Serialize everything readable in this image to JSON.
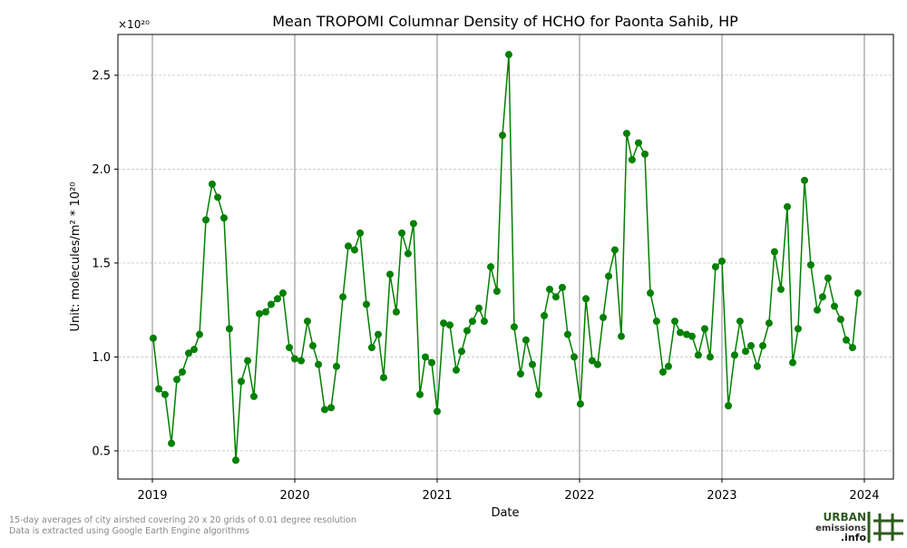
{
  "chart_data": {
    "type": "line",
    "title": "Mean TROPOMI Columnar Density of HCHO for Paonta Sahib, HP",
    "x_label": "Date",
    "y_label": "Unit: molecules/m² * 10²⁰",
    "y_offset_label": "×10²⁰",
    "footnotes": [
      "15-day averages of city airshed covering 20 x 20 grids of 0.01 degree resolution",
      "Data is extracted using Google Earth Engine algorithms"
    ],
    "logo": [
      "URBAN",
      "emissions",
      ".info"
    ],
    "xlim": [
      2018.758,
      2024.204
    ],
    "ylim": [
      0.35,
      2.717
    ],
    "xticks": [
      2019,
      2020,
      2021,
      2022,
      2023,
      2024
    ],
    "yticks": [
      0.5,
      {
        "value": 1,
        "label": "1.0"
      },
      1.5,
      {
        "value": 2,
        "label": "2.0"
      },
      2.5
    ],
    "grid": true,
    "x": [
      2019.006,
      2019.045,
      2019.089,
      2019.134,
      2019.172,
      2019.21,
      2019.255,
      2019.293,
      2019.331,
      2019.376,
      2019.42,
      2019.459,
      2019.503,
      2019.541,
      2019.586,
      2019.624,
      2019.669,
      2019.713,
      2019.752,
      2019.796,
      2019.834,
      2019.879,
      2019.917,
      2019.962,
      2020.0,
      2020.045,
      2020.089,
      2020.127,
      2020.166,
      2020.21,
      2020.255,
      2020.293,
      2020.338,
      2020.376,
      2020.42,
      2020.459,
      2020.503,
      2020.541,
      2020.586,
      2020.624,
      2020.669,
      2020.713,
      2020.752,
      2020.796,
      2020.834,
      2020.879,
      2020.917,
      2020.962,
      2021.0,
      2021.045,
      2021.089,
      2021.134,
      2021.172,
      2021.21,
      2021.248,
      2021.293,
      2021.331,
      2021.376,
      2021.42,
      2021.459,
      2021.503,
      2021.541,
      2021.586,
      2021.624,
      2021.669,
      2021.713,
      2021.752,
      2021.79,
      2021.834,
      2021.879,
      2021.917,
      2021.962,
      2022.006,
      2022.045,
      2022.089,
      2022.127,
      2022.166,
      2022.204,
      2022.248,
      2022.293,
      2022.331,
      2022.369,
      2022.414,
      2022.459,
      2022.497,
      2022.541,
      2022.586,
      2022.624,
      2022.669,
      2022.707,
      2022.752,
      2022.79,
      2022.834,
      2022.879,
      2022.917,
      2022.955,
      2023.0,
      2023.045,
      2023.089,
      2023.127,
      2023.166,
      2023.204,
      2023.248,
      2023.287,
      2023.331,
      2023.369,
      2023.414,
      2023.459,
      2023.497,
      2023.535,
      2023.58,
      2023.624,
      2023.669,
      2023.707,
      2023.745,
      2023.79,
      2023.834,
      2023.873,
      2023.917,
      2023.955
    ],
    "series": [
      {
        "name": "HCHO",
        "color": "#008000",
        "values": [
          1.1,
          0.83,
          0.8,
          0.54,
          0.88,
          0.92,
          1.02,
          1.04,
          1.12,
          1.73,
          1.92,
          1.85,
          1.74,
          1.15,
          0.45,
          0.87,
          0.98,
          0.79,
          1.23,
          1.24,
          1.28,
          1.31,
          1.34,
          1.05,
          0.99,
          0.98,
          1.19,
          1.06,
          0.96,
          0.72,
          0.73,
          0.95,
          1.32,
          1.59,
          1.57,
          1.66,
          1.28,
          1.05,
          1.12,
          0.89,
          1.44,
          1.24,
          1.66,
          1.55,
          1.71,
          0.8,
          1.0,
          0.97,
          0.71,
          1.18,
          1.17,
          0.93,
          1.03,
          1.14,
          1.19,
          1.26,
          1.19,
          1.48,
          1.35,
          2.18,
          2.61,
          1.16,
          0.91,
          1.09,
          0.96,
          0.8,
          1.22,
          1.36,
          1.32,
          1.37,
          1.12,
          1.0,
          0.75,
          1.31,
          0.98,
          0.96,
          1.21,
          1.43,
          1.57,
          1.11,
          2.19,
          2.05,
          2.14,
          2.08,
          1.34,
          1.19,
          0.92,
          0.95,
          1.19,
          1.13,
          1.12,
          1.11,
          1.01,
          1.15,
          1.0,
          1.48,
          1.51,
          0.74,
          1.01,
          1.19,
          1.03,
          1.06,
          0.95,
          1.06,
          1.18,
          1.56,
          1.36,
          1.8,
          0.97,
          1.15,
          1.94,
          1.49,
          1.25,
          1.32,
          1.42,
          1.27,
          1.2,
          1.09,
          1.05,
          1.34
        ]
      }
    ]
  }
}
